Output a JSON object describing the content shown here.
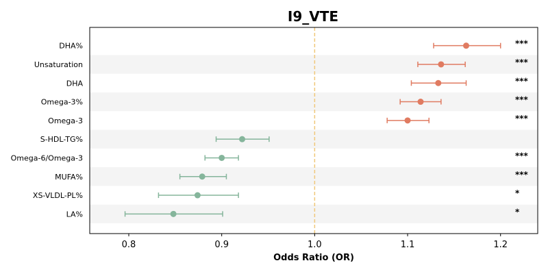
{
  "chart_data": {
    "type": "forest",
    "title": "I9_VTE",
    "xlabel": "Odds Ratio (OR)",
    "xlim": [
      0.758,
      1.24
    ],
    "xticks": [
      0.8,
      0.9,
      1.0,
      1.1,
      1.2
    ],
    "xtick_labels": [
      "0.8",
      "0.9",
      "1.0",
      "1.1",
      "1.2"
    ],
    "reference_line": 1.0,
    "colors": {
      "risk": "#e07b61",
      "protective": "#85b59b",
      "reference": "#f0c87a",
      "band": "#f4f4f4"
    },
    "rows": [
      {
        "label": "DHA%",
        "or": 1.163,
        "lo": 1.128,
        "hi": 1.2,
        "sig": "***"
      },
      {
        "label": "Unsaturation",
        "or": 1.136,
        "lo": 1.111,
        "hi": 1.162,
        "sig": "***"
      },
      {
        "label": "DHA",
        "or": 1.133,
        "lo": 1.104,
        "hi": 1.163,
        "sig": "***"
      },
      {
        "label": "Omega-3%",
        "or": 1.114,
        "lo": 1.092,
        "hi": 1.136,
        "sig": "***"
      },
      {
        "label": "Omega-3",
        "or": 1.1,
        "lo": 1.078,
        "hi": 1.123,
        "sig": "***"
      },
      {
        "label": "S-HDL-TG%",
        "or": 0.922,
        "lo": 0.894,
        "hi": 0.951,
        "sig": ""
      },
      {
        "label": "Omega-6/Omega-3",
        "or": 0.9,
        "lo": 0.882,
        "hi": 0.918,
        "sig": "***"
      },
      {
        "label": "MUFA%",
        "or": 0.879,
        "lo": 0.855,
        "hi": 0.905,
        "sig": "***"
      },
      {
        "label": "XS-VLDL-PL%",
        "or": 0.874,
        "lo": 0.832,
        "hi": 0.918,
        "sig": "*"
      },
      {
        "label": "LA%",
        "or": 0.848,
        "lo": 0.796,
        "hi": 0.901,
        "sig": "*"
      }
    ]
  }
}
